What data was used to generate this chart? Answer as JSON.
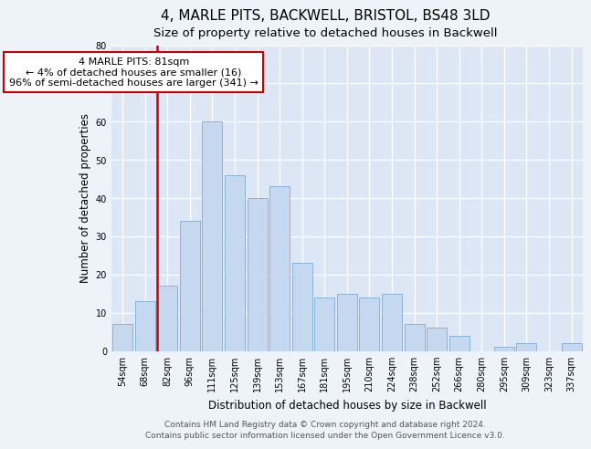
{
  "title": "4, MARLE PITS, BACKWELL, BRISTOL, BS48 3LD",
  "subtitle": "Size of property relative to detached houses in Backwell",
  "xlabel": "Distribution of detached houses by size in Backwell",
  "ylabel": "Number of detached properties",
  "bar_labels": [
    "54sqm",
    "68sqm",
    "82sqm",
    "96sqm",
    "111sqm",
    "125sqm",
    "139sqm",
    "153sqm",
    "167sqm",
    "181sqm",
    "195sqm",
    "210sqm",
    "224sqm",
    "238sqm",
    "252sqm",
    "266sqm",
    "280sqm",
    "295sqm",
    "309sqm",
    "323sqm",
    "337sqm"
  ],
  "bar_values": [
    7,
    13,
    17,
    34,
    60,
    46,
    40,
    43,
    23,
    14,
    15,
    14,
    15,
    7,
    6,
    4,
    0,
    1,
    2,
    0,
    2
  ],
  "bar_color": "#c5d8f0",
  "bar_edge_color": "#7aadd4",
  "highlight_bar_index": 2,
  "highlight_color": "#cc0000",
  "annotation_title": "4 MARLE PITS: 81sqm",
  "annotation_line1": "← 4% of detached houses are smaller (16)",
  "annotation_line2": "96% of semi-detached houses are larger (341) →",
  "annotation_box_color": "#ffffff",
  "annotation_box_edge_color": "#cc0000",
  "ylim": [
    0,
    80
  ],
  "yticks": [
    0,
    10,
    20,
    30,
    40,
    50,
    60,
    70,
    80
  ],
  "footer1": "Contains HM Land Registry data © Crown copyright and database right 2024.",
  "footer2": "Contains public sector information licensed under the Open Government Licence v3.0.",
  "background_color": "#eef2f9",
  "plot_background_color": "#dce6f5",
  "title_fontsize": 11,
  "subtitle_fontsize": 9.5,
  "axis_label_fontsize": 8.5,
  "tick_fontsize": 7,
  "annotation_fontsize": 8,
  "footer_fontsize": 6.5
}
